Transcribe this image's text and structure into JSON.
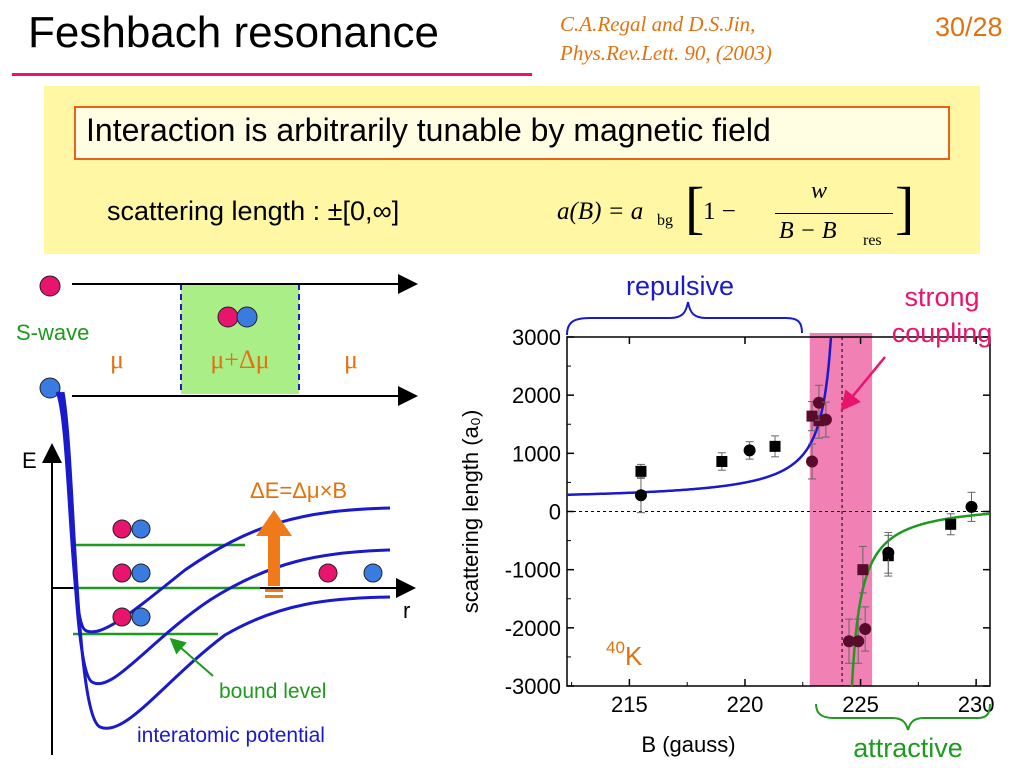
{
  "slide": {
    "title": "Feshbach resonance",
    "citation_line1": "C.A.Regal and D.S.Jin,",
    "citation_line2": "Phys.Rev.Lett. 90, (2003)",
    "page": "30/28"
  },
  "info": {
    "headline": "Interaction is arbitrarily tunable by magnetic field",
    "scattering_label": "scattering length : ±[0,∞]",
    "equation": {
      "lhs": "a(B) = a",
      "lhs_sub": "bg",
      "one_minus": "1 −",
      "numerator": "w",
      "denominator": "B − B",
      "denominator_sub": "res"
    }
  },
  "diagram": {
    "swave_label": "S-wave",
    "mu_left": "μ",
    "mu_center": "μ+Δμ",
    "mu_right": "μ",
    "energy_axis": "E",
    "r_axis": "r",
    "delta_e_label": "ΔE=Δμ×B",
    "bound_level_label": "bound level",
    "potential_label": "interatomic potential"
  },
  "annotations": {
    "repulsive": "repulsive",
    "strong_coupling_line1": "strong",
    "strong_coupling_line2": "coupling",
    "attractive": "attractive",
    "isotope_mass": "40",
    "isotope_symbol": "K"
  },
  "colors": {
    "title_underline": "#e8146e",
    "citation": "#e3720e",
    "info_box": "#fff7a3",
    "atom_red": "#e8146e",
    "atom_blue": "#3a7be0",
    "potential": "#1a1acc",
    "bound_level": "#1e9a1e",
    "mu_region": "#aaee88",
    "resonance_band": "#ee6aa8",
    "arrow_orange": "#f07a18"
  },
  "chart_data": {
    "type": "scatter",
    "xlabel": "B (gauss)",
    "ylabel": "scattering length (a₀)",
    "xlim": [
      212.3,
      230.6
    ],
    "ylim": [
      -3000,
      3000
    ],
    "xticks": [
      215,
      220,
      225,
      230
    ],
    "yticks": [
      3000,
      2000,
      1000,
      0,
      -1000,
      -2000,
      -3000
    ],
    "resonance_B": 224.2,
    "highlight_band": [
      222.8,
      225.5
    ],
    "series": [
      {
        "marker": "square",
        "points": [
          {
            "x": 215.5,
            "y": 690,
            "err": 120
          },
          {
            "x": 219.0,
            "y": 860,
            "err": 150
          },
          {
            "x": 221.3,
            "y": 1120,
            "err": 180
          },
          {
            "x": 222.9,
            "y": 1640,
            "err": 250
          },
          {
            "x": 223.2,
            "y": 1560,
            "err": 300
          },
          {
            "x": 225.1,
            "y": -1000,
            "err": 400
          },
          {
            "x": 226.2,
            "y": -760,
            "err": 350
          },
          {
            "x": 228.9,
            "y": -220,
            "err": 180
          }
        ]
      },
      {
        "marker": "circle",
        "points": [
          {
            "x": 215.5,
            "y": 280,
            "err": 300
          },
          {
            "x": 220.2,
            "y": 1050,
            "err": 150
          },
          {
            "x": 222.9,
            "y": 860,
            "err": 300
          },
          {
            "x": 223.2,
            "y": 1870,
            "err": 300
          },
          {
            "x": 223.5,
            "y": 1580,
            "err": 300
          },
          {
            "x": 224.5,
            "y": -2230,
            "err": 380
          },
          {
            "x": 224.9,
            "y": -2230,
            "err": 380
          },
          {
            "x": 225.2,
            "y": -2020,
            "err": 380
          },
          {
            "x": 226.2,
            "y": -710,
            "err": 350
          },
          {
            "x": 229.8,
            "y": 80,
            "err": 250
          }
        ]
      }
    ],
    "fit": {
      "a_bg": 174,
      "w": 7.8,
      "B_res": 224.2
    }
  }
}
